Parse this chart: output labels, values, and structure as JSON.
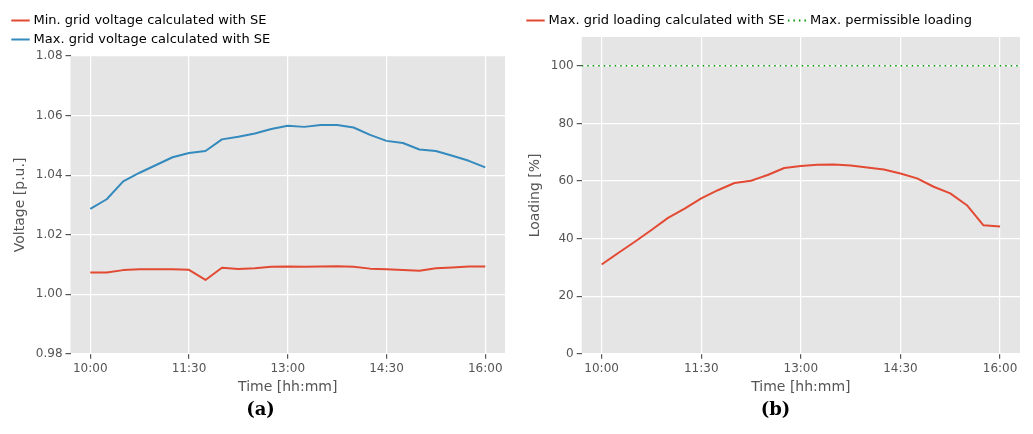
{
  "chart_data": [
    {
      "type": "line",
      "xlabel": "Time [hh:mm]",
      "ylabel": "Voltage [p.u.]",
      "annotations": [
        "(a)"
      ],
      "x": [
        10,
        10.25,
        10.5,
        10.75,
        11,
        11.25,
        11.5,
        11.75,
        12,
        12.25,
        12.5,
        12.75,
        13,
        13.25,
        13.5,
        13.75,
        14,
        14.25,
        14.5,
        14.75,
        15,
        15.25,
        15.5,
        15.75,
        16
      ],
      "series": [
        {
          "name": "Min. grid voltage calculated with SE",
          "color": "#e24a33",
          "values": [
            1.0073,
            1.0073,
            1.0081,
            1.0084,
            1.0084,
            1.0084,
            1.0082,
            1.0048,
            1.0089,
            1.0085,
            1.0087,
            1.0092,
            1.0093,
            1.0092,
            1.0093,
            1.0094,
            1.0092,
            1.0086,
            1.0084,
            1.0081,
            1.0079,
            1.0087,
            1.009,
            1.0093,
            1.0093
          ]
        },
        {
          "name": "Max. grid voltage calculated with SE",
          "color": "#348abd",
          "values": [
            1.0287,
            1.0319,
            1.0379,
            1.0408,
            1.0434,
            1.046,
            1.0474,
            1.0481,
            1.052,
            1.0529,
            1.054,
            1.0555,
            1.0566,
            1.0562,
            1.0568,
            1.0568,
            1.056,
            1.0535,
            1.0515,
            1.0508,
            1.0486,
            1.0481,
            1.0465,
            1.0448,
            1.0426
          ]
        }
      ],
      "xlim": [
        9.7,
        16.3
      ],
      "xticks": [
        {
          "value": 10,
          "label": "10:00"
        },
        {
          "value": 11.5,
          "label": "11:30"
        },
        {
          "value": 13,
          "label": "13:00"
        },
        {
          "value": 14.5,
          "label": "14:30"
        },
        {
          "value": 16,
          "label": "16:00"
        }
      ],
      "ylim": [
        0.98,
        1.08
      ],
      "yticks": [
        {
          "value": 0.98,
          "label": "0.98"
        },
        {
          "value": 1.0,
          "label": "1.00"
        },
        {
          "value": 1.02,
          "label": "1.02"
        },
        {
          "value": 1.04,
          "label": "1.04"
        },
        {
          "value": 1.06,
          "label": "1.06"
        },
        {
          "value": 1.08,
          "label": "1.08"
        }
      ],
      "grid": true,
      "legend": "top",
      "line_style": "solid",
      "marker": "none"
    },
    {
      "type": "line",
      "xlabel": "Time [hh:mm]",
      "ylabel": "Loading [%]",
      "annotations": [
        "(b)"
      ],
      "x": [
        10,
        10.25,
        10.5,
        10.75,
        11,
        11.25,
        11.5,
        11.75,
        12,
        12.25,
        12.5,
        12.75,
        13,
        13.25,
        13.5,
        13.75,
        14,
        14.25,
        14.5,
        14.75,
        15,
        15.25,
        15.5,
        15.75,
        16
      ],
      "series": [
        {
          "name": "Max. grid loading calculated with SE",
          "color": "#e24a33",
          "values": [
            31.0,
            35,
            38.9,
            43,
            47.2,
            50.4,
            54,
            56.8,
            59.3,
            60.1,
            62.1,
            64.5,
            65.2,
            65.6,
            65.7,
            65.4,
            64.7,
            64,
            62.6,
            60.9,
            58,
            55.7,
            51.6,
            44.6,
            44.2
          ]
        }
      ],
      "ref_lines": [
        {
          "axis": "y",
          "value": 100,
          "label": "Max. permissible loading",
          "color": "#009900",
          "line_style": "dotted"
        }
      ],
      "xlim": [
        9.7,
        16.3
      ],
      "xticks": [
        {
          "value": 10,
          "label": "10:00"
        },
        {
          "value": 11.5,
          "label": "11:30"
        },
        {
          "value": 13,
          "label": "13:00"
        },
        {
          "value": 14.5,
          "label": "14:30"
        },
        {
          "value": 16,
          "label": "16:00"
        }
      ],
      "ylim": [
        0,
        110
      ],
      "yticks": [
        0,
        20,
        40,
        60,
        80,
        100
      ],
      "grid": true,
      "legend": "top",
      "line_style": "solid",
      "marker": "none"
    }
  ]
}
